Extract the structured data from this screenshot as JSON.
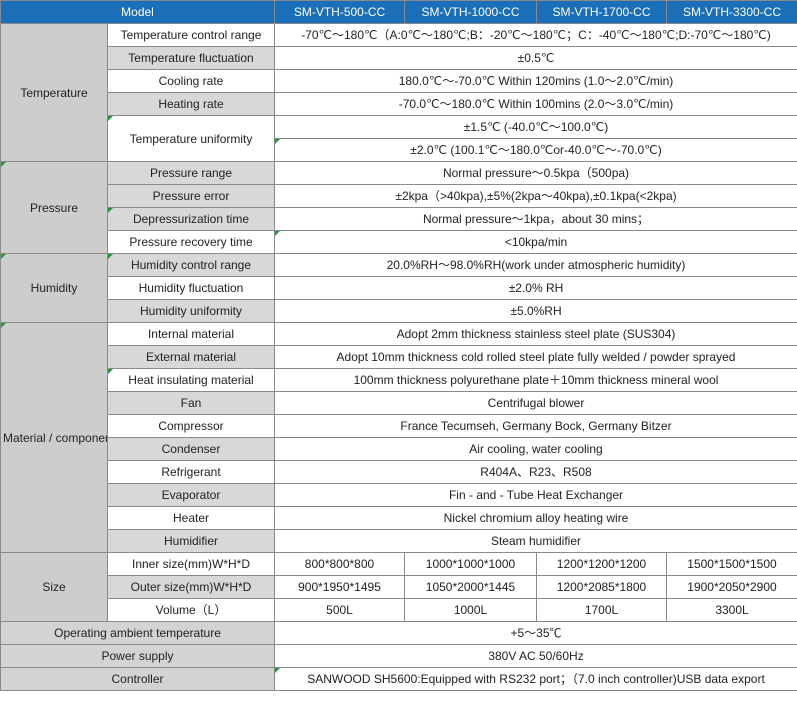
{
  "header": {
    "model_label": "Model",
    "models": [
      "SM-VTH-500-CC",
      "SM-VTH-1000-CC",
      "SM-VTH-1700-CC",
      "SM-VTH-3300-CC"
    ]
  },
  "temperature": {
    "category": "Temperature",
    "control_range": {
      "label": "Temperature control range",
      "value": "-70℃～180℃（A:0℃～180℃;B：-20℃～180℃；C：-40℃～180℃;D:-70℃～180℃)"
    },
    "fluctuation": {
      "label": "Temperature fluctuation",
      "value": "±0.5℃"
    },
    "cooling_rate": {
      "label": "Cooling rate",
      "value": "180.0℃～-70.0℃  Within 120mins (1.0～2.0℃/min)"
    },
    "heating_rate": {
      "label": "Heating rate",
      "value": "-70.0℃～180.0℃ Within 100mins  (2.0～3.0℃/min)"
    },
    "uniformity": {
      "label": "Temperature uniformity",
      "value_1": "±1.5℃ (-40.0℃～100.0℃)",
      "value_2": "±2.0℃ (100.1℃～180.0℃or-40.0℃～-70.0℃)"
    }
  },
  "pressure": {
    "category": "Pressure",
    "range": {
      "label": "Pressure range",
      "value": "Normal pressure～0.5kpa（500pa)"
    },
    "error": {
      "label": "Pressure error",
      "value": "±2kpa（>40kpa),±5%(2kpa～40kpa),±0.1kpa(<2kpa)"
    },
    "depressurization": {
      "label": "Depressurization time",
      "value": "Normal pressure～1kpa，about 30 mins；"
    },
    "recovery": {
      "label": "Pressure recovery time",
      "value": "<10kpa/min"
    }
  },
  "humidity": {
    "category": "Humidity",
    "control_range": {
      "label": "Humidity control range",
      "value": "20.0%RH～98.0%RH(work under atmospheric humidity)"
    },
    "fluctuation": {
      "label": "Humidity fluctuation",
      "value": "±2.0% RH"
    },
    "uniformity": {
      "label": "Humidity uniformity",
      "value": "±5.0%RH"
    }
  },
  "material": {
    "category": "Material / components",
    "internal": {
      "label": "Internal material",
      "value": "Adopt 2mm thickness stainless steel plate (SUS304)"
    },
    "external": {
      "label": "External material",
      "value": "Adopt 10mm thickness  cold rolled steel plate fully welded / powder sprayed"
    },
    "insulating": {
      "label": "Heat insulating material",
      "value": "100mm thickness polyurethane plate＋10mm thickness mineral wool"
    },
    "fan": {
      "label": "Fan",
      "value": "Centrifugal blower"
    },
    "compressor": {
      "label": "Compressor",
      "value": "France Tecumseh, Germany Bock, Germany Bitzer"
    },
    "condenser": {
      "label": "Condenser",
      "value": "Air cooling, water cooling"
    },
    "refrigerant": {
      "label": "Refrigerant",
      "value": "R404A、R23、R508"
    },
    "evaporator": {
      "label": "Evaporator",
      "value": "Fin - and - Tube Heat Exchanger"
    },
    "heater": {
      "label": "Heater",
      "value": "Nickel chromium alloy heating wire"
    },
    "humidifier": {
      "label": "Humidifier",
      "value": "Steam humidifier"
    }
  },
  "size": {
    "category": "Size",
    "inner": {
      "label": "Inner size(mm)W*H*D",
      "values": [
        "800*800*800",
        "1000*1000*1000",
        "1200*1200*1200",
        "1500*1500*1500"
      ]
    },
    "outer": {
      "label": "Outer size(mm)W*H*D",
      "values": [
        "900*1950*1495",
        "1050*2000*1445",
        "1200*2085*1800",
        "1900*2050*2900"
      ]
    },
    "volume": {
      "label": "Volume（L）",
      "values": [
        "500L",
        "1000L",
        "1700L",
        "3300L"
      ]
    }
  },
  "general": {
    "ambient": {
      "label": "Operating ambient temperature",
      "value": "+5～35℃"
    },
    "power": {
      "label": "Power supply",
      "value": "380V AC  50/60Hz"
    },
    "controller": {
      "label": "Controller",
      "value": "SANWOOD SH5600:Equipped with RS232 port；（7.0 inch controller)USB data export"
    }
  },
  "colors": {
    "header_blue": "#1b6fb9",
    "label_gray": "#d8d8d8",
    "category_gray": "#cdcdcd",
    "marker_green": "#1e9a3a"
  }
}
